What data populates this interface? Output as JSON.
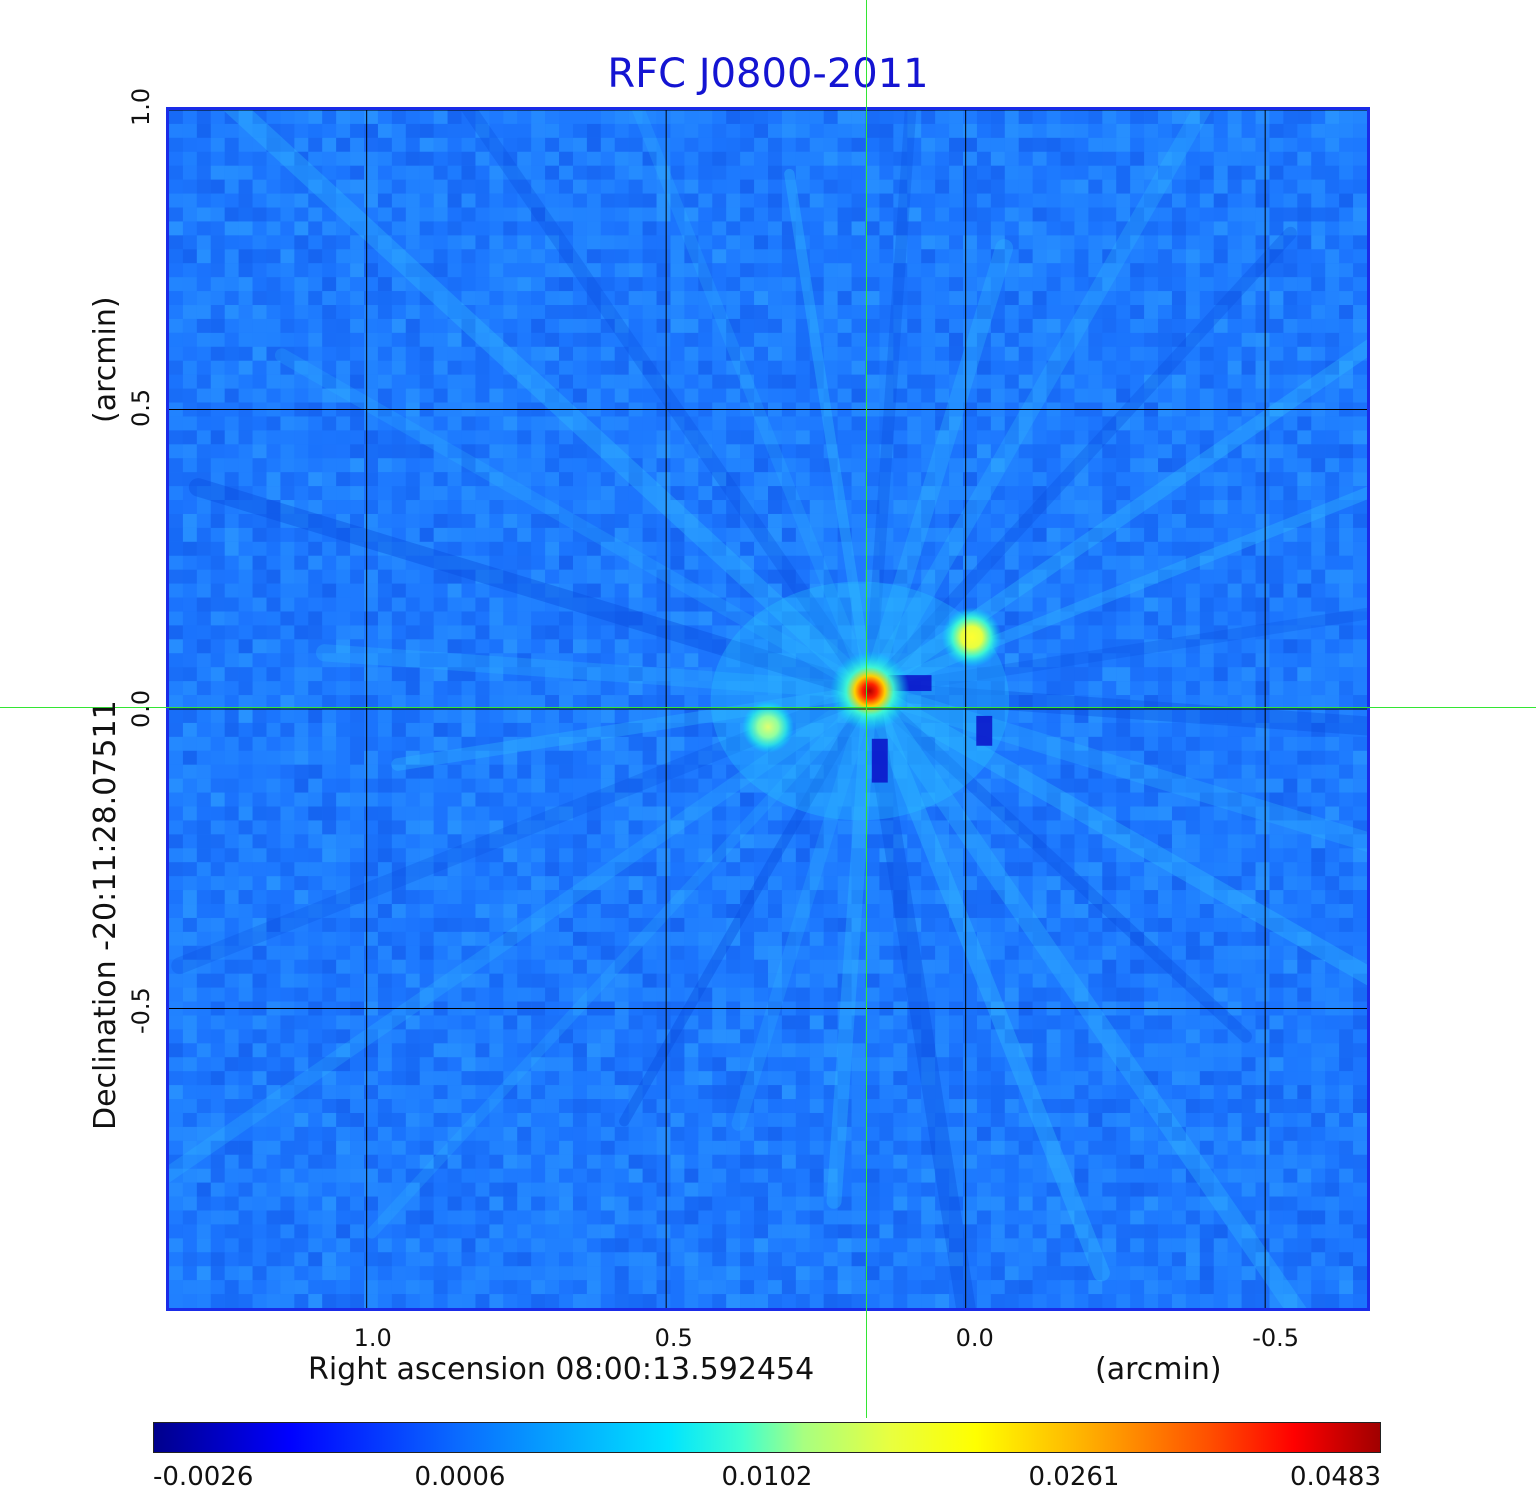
{
  "chart_data": {
    "type": "heatmap",
    "title": "RFC J0800-2011",
    "xlabel": "Right ascension  08:00:13.592454",
    "xunit": "(arcmin)",
    "ylabel": "Declination  -20:11:28.07511",
    "yunit": "(arcmin)",
    "xlim": [
      1.33,
      -0.67
    ],
    "ylim": [
      -1.0,
      1.0
    ],
    "x_ticks": [
      {
        "value": 1.0,
        "label": "1.0"
      },
      {
        "value": 0.5,
        "label": "0.5"
      },
      {
        "value": 0.0,
        "label": "0.0"
      },
      {
        "value": -0.5,
        "label": "-0.5"
      }
    ],
    "y_ticks": [
      {
        "value": 1.0,
        "label": "1.0"
      },
      {
        "value": 0.5,
        "label": "0.5"
      },
      {
        "value": 0.0,
        "label": "0.0"
      },
      {
        "value": -0.5,
        "label": "-0.5"
      }
    ],
    "grid": true,
    "crosshair": {
      "x": 0.167,
      "y": 0.003
    },
    "colorbar": {
      "colormap": "jet",
      "labels": [
        "-0.0026",
        "0.0006",
        "0.0102",
        "0.0261",
        "0.0483"
      ]
    },
    "sources": [
      {
        "x": 0.16,
        "y": 0.03,
        "peak": 0.0483
      },
      {
        "x": -0.01,
        "y": 0.12,
        "peak": 0.016
      },
      {
        "x": 0.33,
        "y": -0.03,
        "peak": 0.012
      }
    ],
    "colors": {
      "title": "#1414d2",
      "frame": "#1a2ce8",
      "crosshair": "#33e633",
      "grid": "#000000",
      "background_map": "#1e78ff"
    }
  }
}
